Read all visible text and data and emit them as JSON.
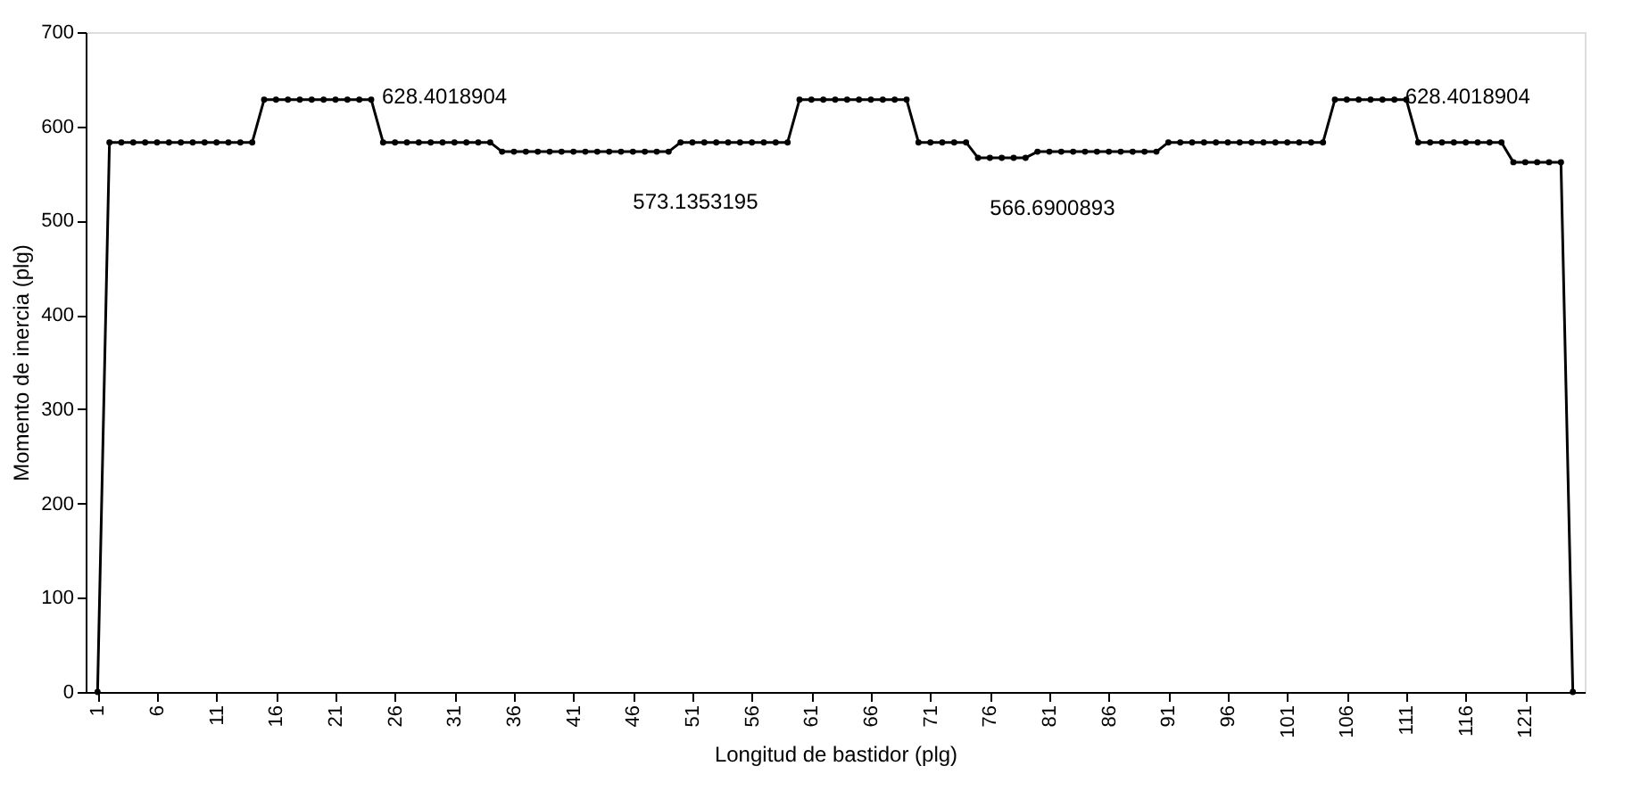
{
  "chart_data": {
    "type": "line",
    "xlabel": "Longitud de bastidor (plg)",
    "ylabel": "Momento de inercia (plg)",
    "x": [
      1,
      2,
      3,
      4,
      5,
      6,
      7,
      8,
      9,
      10,
      11,
      12,
      13,
      14,
      15,
      16,
      17,
      18,
      19,
      20,
      21,
      22,
      23,
      24,
      25,
      26,
      27,
      28,
      29,
      30,
      31,
      32,
      33,
      34,
      35,
      36,
      37,
      38,
      39,
      40,
      41,
      42,
      43,
      44,
      45,
      46,
      47,
      48,
      49,
      50,
      51,
      52,
      53,
      54,
      55,
      56,
      57,
      58,
      59,
      60,
      61,
      62,
      63,
      64,
      65,
      66,
      67,
      68,
      69,
      70,
      71,
      72,
      73,
      74,
      75,
      76,
      77,
      78,
      79,
      80,
      81,
      82,
      83,
      84,
      85,
      86,
      87,
      88,
      89,
      90,
      91,
      92,
      93,
      94,
      95,
      96,
      97,
      98,
      99,
      100,
      101,
      102,
      103,
      104,
      105,
      106,
      107,
      108,
      109,
      110,
      111,
      112,
      113,
      114,
      115,
      116,
      117,
      118,
      119,
      120,
      121,
      122,
      123,
      124,
      125
    ],
    "series": [
      {
        "color": "#000000",
        "values": [
          0,
          583,
          583,
          583,
          583,
          583,
          583,
          583,
          583,
          583,
          583,
          583,
          583,
          583,
          628.4018904,
          628.4018904,
          628.4018904,
          628.4018904,
          628.4018904,
          628.4018904,
          628.4018904,
          628.4018904,
          628.4018904,
          628.4018904,
          583,
          583,
          583,
          583,
          583,
          583,
          583,
          583,
          583,
          583,
          573.1353195,
          573.1353195,
          573.1353195,
          573.1353195,
          573.1353195,
          573.1353195,
          573.1353195,
          573.1353195,
          573.1353195,
          573.1353195,
          573.1353195,
          573.1353195,
          573.1353195,
          573.1353195,
          573.1353195,
          583,
          583,
          583,
          583,
          583,
          583,
          583,
          583,
          583,
          583,
          628.4018904,
          628.4018904,
          628.4018904,
          628.4018904,
          628.4018904,
          628.4018904,
          628.4018904,
          628.4018904,
          628.4018904,
          628.4018904,
          583,
          583,
          583,
          583,
          583,
          566.6900893,
          566.6900893,
          566.6900893,
          566.6900893,
          566.6900893,
          573.1353195,
          573.1353195,
          573.1353195,
          573.1353195,
          573.1353195,
          573.1353195,
          573.1353195,
          573.1353195,
          573.1353195,
          573.1353195,
          573.1353195,
          583,
          583,
          583,
          583,
          583,
          583,
          583,
          583,
          583,
          583,
          583,
          583,
          583,
          583,
          628.4018904,
          628.4018904,
          628.4018904,
          628.4018904,
          628.4018904,
          628.4018904,
          628.4018904,
          583,
          583,
          583,
          583,
          583,
          583,
          583,
          583,
          562,
          562,
          562,
          562,
          562,
          0
        ]
      }
    ],
    "annotations": [
      {
        "text": "628.4018904",
        "x": 24,
        "y": 628.4018904
      },
      {
        "text": "573.1353195",
        "x": 49,
        "y": 573.1353195
      },
      {
        "text": "566.6900893",
        "x": 79,
        "y": 566.6900893
      },
      {
        "text": "628.4018904",
        "x": 110,
        "y": 628.4018904
      }
    ],
    "xlim": [
      0,
      126
    ],
    "xticks": [
      1,
      6,
      11,
      16,
      21,
      26,
      31,
      36,
      41,
      46,
      51,
      56,
      61,
      66,
      71,
      76,
      81,
      86,
      91,
      96,
      101,
      106,
      111,
      116,
      121
    ],
    "ylim": [
      0,
      700
    ],
    "yticks": [
      0,
      100,
      200,
      300,
      400,
      500,
      600,
      700
    ],
    "grid": false,
    "legend": false,
    "marker": "circle",
    "line_style": "solid"
  }
}
